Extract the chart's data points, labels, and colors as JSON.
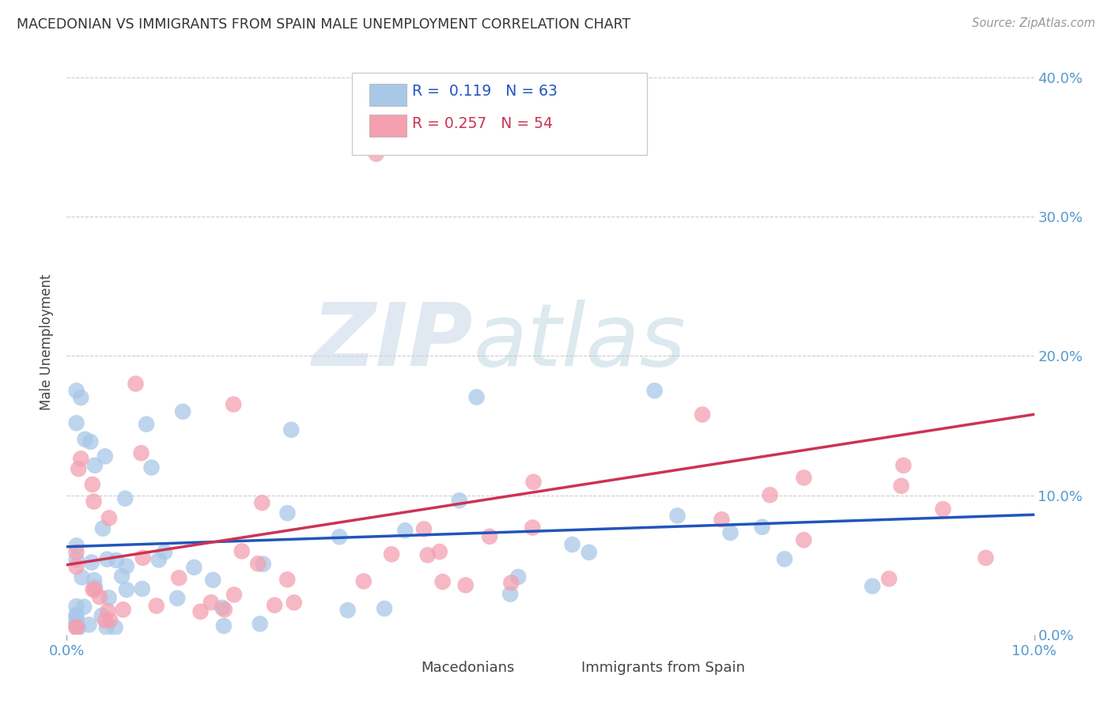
{
  "title": "MACEDONIAN VS IMMIGRANTS FROM SPAIN MALE UNEMPLOYMENT CORRELATION CHART",
  "source": "Source: ZipAtlas.com",
  "ylabel": "Male Unemployment",
  "xlim": [
    0.0,
    0.1
  ],
  "ylim": [
    0.0,
    0.42
  ],
  "blue_color": "#A8C8E8",
  "blue_edge_color": "#A8C8E8",
  "pink_color": "#F4A0B0",
  "pink_edge_color": "#F4A0B0",
  "blue_line_color": "#2255BB",
  "pink_line_color": "#CC3355",
  "R_blue": 0.119,
  "N_blue": 63,
  "R_pink": 0.257,
  "N_pink": 54,
  "background_color": "#ffffff",
  "grid_color": "#cccccc",
  "title_color": "#333333",
  "axis_label_color": "#444444",
  "right_tick_color": "#5599CC",
  "watermark_zip": "ZIP",
  "watermark_atlas": "atlas",
  "legend_label_blue": "Macedonians",
  "legend_label_pink": "Immigrants from Spain",
  "blue_trend_x": [
    0.0,
    0.1
  ],
  "blue_trend_y": [
    0.063,
    0.086
  ],
  "pink_trend_x": [
    0.0,
    0.1
  ],
  "pink_trend_y": [
    0.05,
    0.158
  ]
}
